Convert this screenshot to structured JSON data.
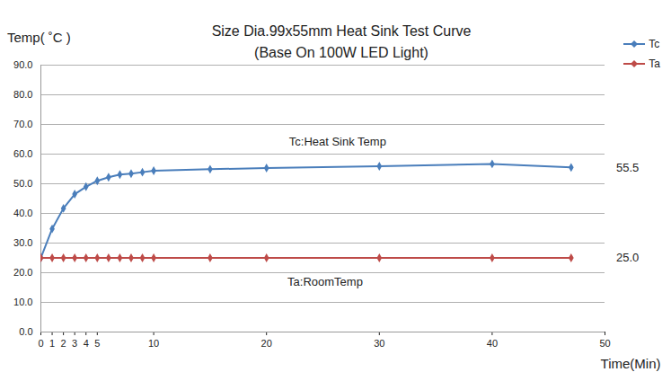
{
  "chart_data": {
    "type": "line",
    "title": "Size Dia.99x55mm Heat Sink Test Curve",
    "subtitle": "(Base On 100W LED Light)",
    "ylabel": "Temp( ˚C )",
    "xlabel": "Time(Min)",
    "x": [
      0,
      1,
      2,
      3,
      4,
      5,
      6,
      7,
      8,
      9,
      10,
      15,
      20,
      30,
      40,
      47
    ],
    "series": [
      {
        "name": "Tc",
        "color": "#4a7ebb",
        "marker": "diamond",
        "values": [
          25,
          34.8,
          41.7,
          46.5,
          49.0,
          51.0,
          52.2,
          53.1,
          53.4,
          53.9,
          54.4,
          54.9,
          55.3,
          55.9,
          56.7,
          55.5
        ]
      },
      {
        "name": "Ta",
        "color": "#be4b48",
        "marker": "diamond",
        "values": [
          25,
          25,
          25,
          25,
          25,
          25,
          25,
          25,
          25,
          25,
          25,
          25,
          25,
          25,
          25,
          25
        ]
      }
    ],
    "xlim": [
      0,
      50
    ],
    "xticks": [
      0,
      1,
      2,
      3,
      4,
      5,
      10,
      20,
      30,
      40,
      50
    ],
    "ylim": [
      0,
      90
    ],
    "yticks": [
      {
        "value": 0,
        "label": "0.0"
      },
      {
        "value": 10,
        "label": "10.0"
      },
      {
        "value": 20,
        "label": "20.0"
      },
      {
        "value": 30,
        "label": "30.0"
      },
      {
        "value": 40,
        "label": "40.0"
      },
      {
        "value": 50,
        "label": "50.0"
      },
      {
        "value": 60,
        "label": "60.0"
      },
      {
        "value": 70,
        "label": "70.0"
      },
      {
        "value": 80,
        "label": "80.0"
      },
      {
        "value": 90,
        "label": "90.0"
      }
    ],
    "grid": true,
    "legend": "top-right",
    "annotations": [
      {
        "text": "Tc:Heat Sink Temp",
        "x": 26.3,
        "y": 64.2
      },
      {
        "text": "Ta:RoomTemp",
        "x": 25.2,
        "y": 17
      },
      {
        "text": "55.5",
        "x": 52,
        "y": 55.5
      },
      {
        "text": "25.0",
        "x": 52,
        "y": 25
      }
    ]
  }
}
